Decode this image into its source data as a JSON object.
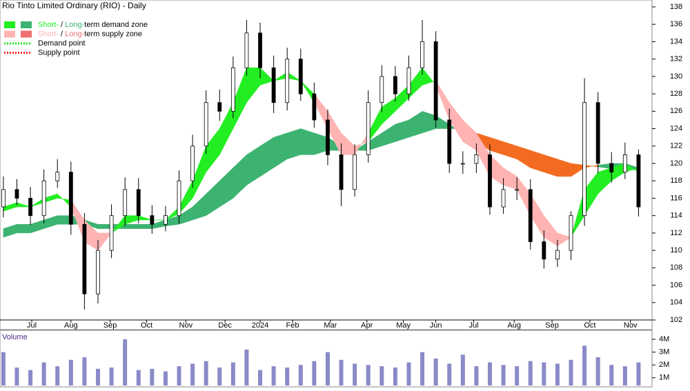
{
  "chart_data": {
    "type": "candlestick",
    "title": "Rio Tinto Limited Ordinary (RIO) - Daily",
    "volume_label": "Volume",
    "xlim": [
      -0.25,
      48
    ],
    "xticks": [
      {
        "value": 2.1,
        "label": "Jul"
      },
      {
        "value": 5.0,
        "label": "Aug"
      },
      {
        "value": 7.9,
        "label": "Sep"
      },
      {
        "value": 10.6,
        "label": "Oct"
      },
      {
        "value": 13.5,
        "label": "Nov"
      },
      {
        "value": 16.4,
        "label": "Dec"
      },
      {
        "value": 19.0,
        "label": "2024"
      },
      {
        "value": 21.4,
        "label": "Feb"
      },
      {
        "value": 24.2,
        "label": "Mar"
      },
      {
        "value": 26.9,
        "label": "Apr"
      },
      {
        "value": 29.6,
        "label": "May"
      },
      {
        "value": 32.0,
        "label": "Jun"
      },
      {
        "value": 34.8,
        "label": "Jul"
      },
      {
        "value": 37.8,
        "label": "Aug"
      },
      {
        "value": 40.6,
        "label": "Sep"
      },
      {
        "value": 43.4,
        "label": "Oct"
      },
      {
        "value": 46.4,
        "label": "Nov"
      }
    ],
    "ylim": [
      102,
      138
    ],
    "yticks": [
      102,
      104,
      106,
      108,
      110,
      112,
      114,
      116,
      118,
      120,
      122,
      124,
      126,
      128,
      130,
      132,
      134,
      136,
      138
    ],
    "open": [
      115,
      117,
      116,
      114,
      118,
      119,
      113,
      105,
      110,
      114,
      117,
      114,
      113,
      114,
      118,
      122,
      127,
      126,
      131,
      135,
      131,
      127,
      132,
      128,
      125,
      121,
      117,
      121,
      127,
      130,
      128,
      131,
      134,
      125,
      120,
      120,
      121,
      115,
      117,
      117,
      111,
      109,
      110,
      114,
      127,
      120,
      119,
      121
    ],
    "high": [
      118.5,
      118.2,
      117.3,
      119.3,
      120.5,
      120.2,
      114.3,
      111.2,
      115.3,
      118.4,
      118.3,
      115.2,
      115.1,
      119.2,
      123.3,
      128.4,
      128.5,
      132.3,
      136.5,
      136.2,
      132.4,
      133.3,
      133.2,
      129.3,
      126.2,
      122.3,
      122.2,
      128.4,
      131.3,
      131.2,
      132.4,
      136.5,
      135.2,
      126.3,
      121.4,
      122.3,
      122.2,
      118.3,
      118.4,
      118.2,
      112.3,
      111.2,
      114.5,
      129.8,
      128.2,
      121.3,
      122.4,
      121.6
    ],
    "low": [
      113.8,
      115.2,
      112.9,
      113.1,
      117.2,
      111.8,
      103.2,
      103.9,
      109.1,
      112.8,
      113.1,
      111.9,
      112.2,
      113.1,
      117.2,
      121.1,
      124.9,
      125.2,
      130.1,
      129.8,
      125.8,
      126.1,
      127.2,
      124.1,
      119.8,
      115.1,
      116.2,
      120.1,
      125.9,
      127.1,
      127.2,
      130.2,
      124.1,
      118.9,
      118.8,
      118.9,
      114.1,
      114.2,
      115.8,
      110.1,
      107.9,
      108.1,
      108.9,
      112.8,
      118.9,
      117.8,
      118.2,
      113.9
    ],
    "close": [
      117,
      116,
      114,
      118,
      119,
      113,
      105,
      110,
      114,
      117,
      114,
      113,
      114,
      118,
      122,
      127,
      126,
      131,
      135,
      131,
      127,
      132,
      128,
      125,
      121,
      117,
      121,
      127,
      130,
      128,
      131,
      134,
      125,
      120,
      120,
      121,
      115,
      117,
      117,
      111,
      109,
      110,
      114,
      127,
      120,
      119,
      121,
      115
    ],
    "candle_up_color": "#ffffff",
    "candle_down_color": "#000000",
    "short_term": {
      "fast": [
        115,
        115.5,
        115,
        116,
        116.5,
        115,
        111,
        110,
        112,
        114,
        114,
        113.5,
        113.5,
        115,
        118,
        122,
        124,
        127,
        131,
        131,
        129.5,
        130.5,
        129.5,
        127,
        124,
        121,
        121,
        123.5,
        126.5,
        127.5,
        129,
        131,
        129,
        125,
        122.5,
        121.5,
        118.5,
        117.5,
        117,
        114,
        111.5,
        110.5,
        111.5,
        117,
        119,
        119.5,
        120,
        119
      ],
      "slow": [
        114.5,
        115,
        115,
        115.5,
        116,
        115.8,
        113.5,
        112,
        112,
        113,
        113.5,
        113.5,
        113.5,
        114.2,
        116,
        119,
        121,
        124,
        127,
        129,
        129.5,
        129.8,
        129.5,
        128,
        126,
        123.5,
        122,
        122.5,
        124.5,
        126,
        127.5,
        129,
        129.5,
        127,
        125,
        123.5,
        121,
        119.5,
        118.5,
        116.5,
        114,
        112,
        111.5,
        114,
        116.5,
        118,
        119,
        119.5
      ],
      "demand_color": "#22ee22",
      "supply_color": "#ffb3b3"
    },
    "long_term": {
      "fast": [
        112.5,
        113,
        113,
        113.5,
        114,
        114,
        113.5,
        113,
        113,
        113,
        113,
        113,
        113.5,
        114,
        115,
        116.5,
        118,
        119.5,
        121,
        122,
        123,
        123.5,
        124,
        123.5,
        123,
        122,
        121.5,
        122.5,
        123.5,
        124.5,
        125,
        126,
        125.5,
        124.5,
        123.5,
        122.5,
        121.5,
        121,
        120.5,
        119.5,
        119,
        118.5,
        118.5,
        119.5,
        119.8,
        120,
        120,
        119.5
      ],
      "slow": [
        111.5,
        112,
        112,
        112.5,
        113,
        113,
        113,
        112.5,
        112.5,
        112.5,
        112.5,
        112.5,
        112.8,
        113,
        113.5,
        114,
        115,
        116,
        117.5,
        118.5,
        119.5,
        120.5,
        121,
        121,
        121.5,
        121.5,
        121.5,
        121.5,
        122,
        122.5,
        123,
        123.5,
        124,
        124,
        124,
        123.5,
        123,
        122.5,
        122,
        121.5,
        121,
        120.5,
        120,
        119.8,
        119.6,
        119.4,
        119.2,
        119.3
      ],
      "demand_color": "#3cb371",
      "supply_color": "#f26b21"
    },
    "legend": [
      {
        "parts": [
          {
            "text": "Short-",
            "color": "#22ee22"
          },
          {
            "text": " / ",
            "color": "#000000"
          },
          {
            "text": "Long-",
            "color": "#3cb371"
          },
          {
            "text": "term demand zone",
            "color": "#000000"
          }
        ],
        "swatches": [
          "#22ee22",
          "#3cb371"
        ]
      },
      {
        "parts": [
          {
            "text": "Short-",
            "color": "#ffb3b3"
          },
          {
            "text": " / ",
            "color": "#000000"
          },
          {
            "text": "Long-",
            "color": "#f07070"
          },
          {
            "text": "term supply zone",
            "color": "#000000"
          }
        ],
        "swatches": [
          "#ffb3b3",
          "#f07070"
        ]
      },
      {
        "parts": [
          {
            "text": "Demand point",
            "color": "#000000"
          }
        ],
        "dotted": "#22dd22"
      },
      {
        "parts": [
          {
            "text": "Supply point",
            "color": "#000000"
          }
        ],
        "dotted": "#ee2222"
      }
    ],
    "volume": [
      3000000,
      1800000,
      1600000,
      2200000,
      1900000,
      2400000,
      2600000,
      1700000,
      1800000,
      4000000,
      1600000,
      1700000,
      1500000,
      1900000,
      2100000,
      2300000,
      1800000,
      2200000,
      3200000,
      1600000,
      1900000,
      1800000,
      2000000,
      2300000,
      3000000,
      2400000,
      2100000,
      2000000,
      1900000,
      1800000,
      2200000,
      3000000,
      2500000,
      2100000,
      2800000,
      1900000,
      2200000,
      2000000,
      1900000,
      2300000,
      2200000,
      2100000,
      2400000,
      3500000,
      2600000,
      2000000,
      1900000,
      2200000
    ],
    "volume_color": "#8a8ac8",
    "vlim": [
      400000,
      4700000
    ],
    "vticks": [
      {
        "value": 1000000,
        "label": "1M"
      },
      {
        "value": 2000000,
        "label": "2M"
      },
      {
        "value": 3000000,
        "label": "3M"
      },
      {
        "value": 4000000,
        "label": "4M"
      }
    ]
  }
}
